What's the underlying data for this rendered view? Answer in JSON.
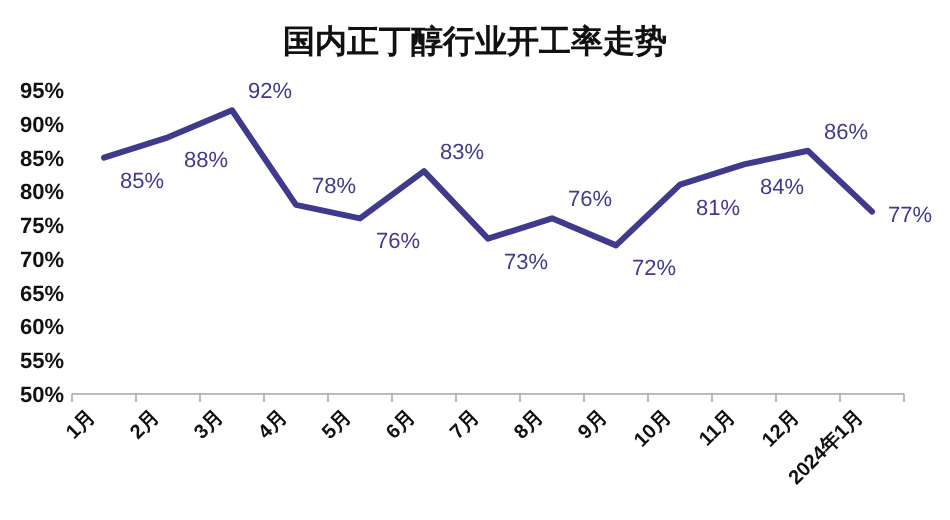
{
  "chart_data": {
    "type": "line",
    "title": "国内正丁醇行业开工率走势",
    "categories": [
      "1月",
      "2月",
      "3月",
      "4月",
      "5月",
      "6月",
      "7月",
      "8月",
      "9月",
      "10月",
      "11月",
      "12月",
      "2024年1月"
    ],
    "series": [
      {
        "color": "#3f3a8c",
        "values": [
          85,
          88,
          92,
          78,
          76,
          83,
          73,
          76,
          72,
          81,
          84,
          86,
          77
        ]
      }
    ],
    "value_labels": [
      "85%",
      "88%",
      "92%",
      "78%",
      "76%",
      "83%",
      "73%",
      "76%",
      "72%",
      "81%",
      "84%",
      "86%",
      "77%"
    ],
    "ylim": [
      50,
      95
    ],
    "yticks": [
      {
        "value": 50,
        "label": "50%"
      },
      {
        "value": 55,
        "label": "55%"
      },
      {
        "value": 60,
        "label": "60%"
      },
      {
        "value": 65,
        "label": "65%"
      },
      {
        "value": 70,
        "label": "70%"
      },
      {
        "value": 75,
        "label": "75%"
      },
      {
        "value": 80,
        "label": "80%"
      },
      {
        "value": 85,
        "label": "85%"
      },
      {
        "value": 90,
        "label": "90%"
      },
      {
        "value": 95,
        "label": "95%"
      }
    ],
    "grid": false,
    "marker": "none",
    "line_style": "solid"
  }
}
